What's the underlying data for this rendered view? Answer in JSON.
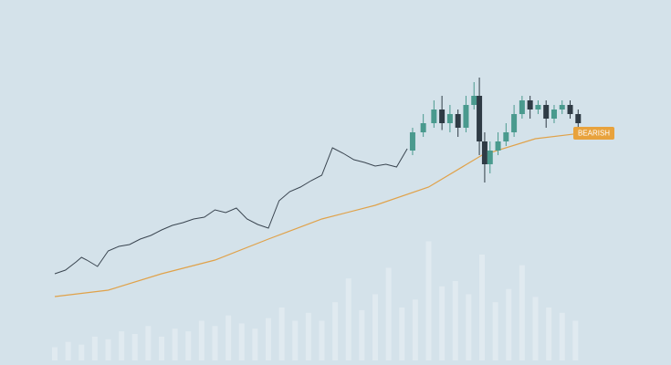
{
  "chart_data": [
    {
      "type": "line",
      "xlim": [
        0,
        100
      ],
      "ylim": [
        0,
        100
      ],
      "x": [
        0,
        2,
        4,
        5,
        6,
        8,
        10,
        12,
        14,
        16,
        18,
        20,
        22,
        24,
        26,
        28,
        30,
        32,
        34,
        36,
        38,
        40,
        42,
        44,
        46,
        48,
        50,
        52,
        54,
        56,
        58,
        60,
        62,
        64,
        66
      ],
      "series": [
        {
          "color": "#3a4550",
          "values": [
            12,
            13.6,
            17.2,
            19.2,
            18,
            15.2,
            22,
            24,
            24.8,
            27.2,
            28.8,
            31.2,
            33.2,
            34.4,
            36,
            36.8,
            40,
            38.8,
            40.8,
            36,
            33.6,
            32,
            44,
            48,
            50,
            52.8,
            55.2,
            67.2,
            64.8,
            62,
            60.8,
            59.2,
            60,
            58.8,
            66.8
          ]
        }
      ],
      "ma": {
        "color": "#e0a24a",
        "x": [
          0,
          10,
          20,
          30,
          40,
          50,
          60,
          70,
          80,
          90,
          100
        ],
        "values": [
          2,
          4.8,
          12,
          18,
          27.2,
          36,
          42,
          50,
          64,
          71.2,
          74
        ]
      }
    },
    {
      "type": "candlestick",
      "xlim": [
        0,
        100
      ],
      "ylim": [
        0,
        100
      ],
      "up_color": "#4a9a8e",
      "down_color": "#2f3b45",
      "x": [
        67,
        69,
        71,
        72.5,
        74,
        75.5,
        77,
        78.5,
        79.5,
        80.5,
        81.5,
        83,
        84.5,
        86,
        87.5,
        89,
        90.5,
        92,
        93.5,
        95,
        96.5,
        98
      ],
      "open": [
        66,
        74,
        78,
        84,
        78,
        82,
        76,
        86,
        90,
        70,
        60,
        66,
        70,
        74,
        82,
        88,
        84,
        86,
        80,
        84,
        86,
        82
      ],
      "high": [
        76,
        82,
        88,
        90,
        86,
        84,
        90,
        96,
        98,
        74,
        70,
        74,
        78,
        86,
        90,
        90,
        88,
        88,
        86,
        88,
        88,
        84
      ],
      "low": [
        64,
        72,
        76,
        75,
        74,
        72,
        74,
        84,
        64,
        52,
        56,
        64,
        68,
        72,
        80,
        80,
        82,
        76,
        78,
        82,
        80,
        76
      ],
      "close": [
        74,
        78,
        84,
        78,
        82,
        76,
        86,
        90,
        70,
        60,
        66,
        70,
        74,
        82,
        88,
        84,
        86,
        80,
        84,
        86,
        82,
        78
      ],
      "annotation": "BEARISH",
      "annotation_color": "#e8a23c"
    },
    {
      "type": "bar",
      "xlim": [
        0,
        100
      ],
      "ylim": [
        0,
        100
      ],
      "color": "#ffffff",
      "x": [
        0,
        2.5,
        5,
        7.5,
        10,
        12.5,
        15,
        17.5,
        20,
        22.5,
        25,
        27.5,
        30,
        32.5,
        35,
        37.5,
        40,
        42.5,
        45,
        47.5,
        50,
        52.5,
        55,
        57.5,
        60,
        62.5,
        65,
        67.5,
        70,
        72.5,
        75,
        77.5,
        80,
        82.5,
        85,
        87.5,
        90,
        92.5,
        95,
        97.5
      ],
      "values": [
        10,
        14,
        12,
        18,
        16,
        22,
        20,
        26,
        18,
        24,
        22,
        30,
        26,
        34,
        28,
        24,
        32,
        40,
        30,
        36,
        30,
        44,
        62,
        38,
        50,
        70,
        40,
        46,
        90,
        56,
        60,
        50,
        80,
        44,
        54,
        72,
        48,
        40,
        36,
        30
      ]
    }
  ]
}
